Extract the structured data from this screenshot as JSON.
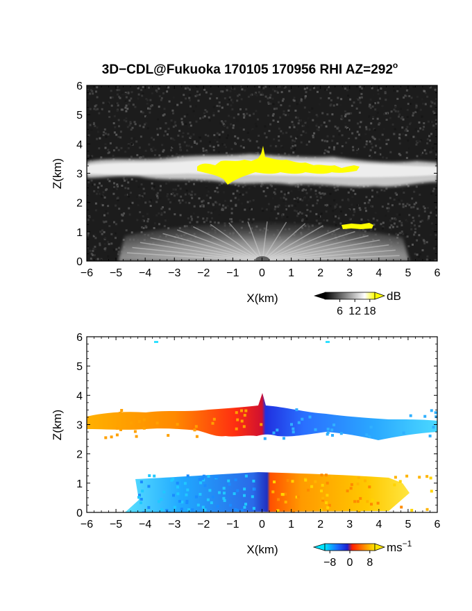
{
  "title": "3D−CDL@Fukuoka 170105 170956 RHI AZ=292",
  "title_degree": "o",
  "chart_data": [
    {
      "type": "heatmap",
      "field": "backscatter",
      "xlabel": "X(km)",
      "ylabel": "Z(km)",
      "xlim": [
        -6,
        6
      ],
      "ylim": [
        0,
        6
      ],
      "xticks": [
        "−6",
        "−5",
        "−4",
        "−3",
        "−2",
        "−1",
        "0",
        "1",
        "2",
        "3",
        "4",
        "5",
        "6"
      ],
      "yticks": [
        "0",
        "1",
        "2",
        "3",
        "4",
        "5",
        "6"
      ],
      "colorbar": {
        "unit": "dB",
        "ticks": [
          6,
          12,
          18
        ],
        "tick_labels": [
          "6",
          "12",
          "18"
        ],
        "range": [
          0,
          20
        ],
        "colors": [
          "#000000",
          "#ffffff",
          "#ffff00"
        ]
      },
      "features": [
        {
          "name": "cloud layer",
          "x": [
            -6,
            6
          ],
          "z": [
            3.0,
            3.5
          ]
        },
        {
          "name": "strong echo",
          "x": [
            -2.2,
            3.4
          ],
          "z": [
            2.8,
            3.4
          ]
        },
        {
          "name": "cloud top turret",
          "x": [
            -0.1,
            0.1
          ],
          "z": [
            3.4,
            4.1
          ]
        },
        {
          "name": "boundary layer",
          "x": [
            -4.5,
            4.2
          ],
          "z": [
            0,
            1.3
          ]
        },
        {
          "name": "strong echo aloft",
          "x": [
            2.8,
            3.7
          ],
          "z": [
            1.1,
            1.25
          ]
        }
      ]
    },
    {
      "type": "heatmap",
      "field": "doppler velocity",
      "xlabel": "X(km)",
      "ylabel": "Z(km)",
      "xlim": [
        -6,
        6
      ],
      "ylim": [
        0,
        6
      ],
      "xticks": [
        "−6",
        "−5",
        "−4",
        "−3",
        "−2",
        "−1",
        "0",
        "1",
        "2",
        "3",
        "4",
        "5",
        "6"
      ],
      "yticks": [
        "0",
        "1",
        "2",
        "3",
        "4",
        "5",
        "6"
      ],
      "colorbar": {
        "unit": "ms",
        "unit_exp": "−1",
        "ticks": [
          -8,
          0,
          8
        ],
        "tick_labels": [
          "−8",
          "0",
          "8"
        ],
        "range": [
          -10,
          10
        ],
        "colors": [
          "#00e5ff",
          "#1a3cff",
          "#ff2000",
          "#ffe600"
        ]
      },
      "features": [
        {
          "name": "cloud layer",
          "x": [
            -6,
            6
          ],
          "z": [
            2.6,
            3.6
          ],
          "velocity_left": 6,
          "velocity_right": -5
        },
        {
          "name": "boundary layer",
          "x": [
            -4.4,
            4.4
          ],
          "z": [
            0,
            1.35
          ],
          "velocity_left": -6,
          "velocity_right": 6
        }
      ]
    }
  ]
}
